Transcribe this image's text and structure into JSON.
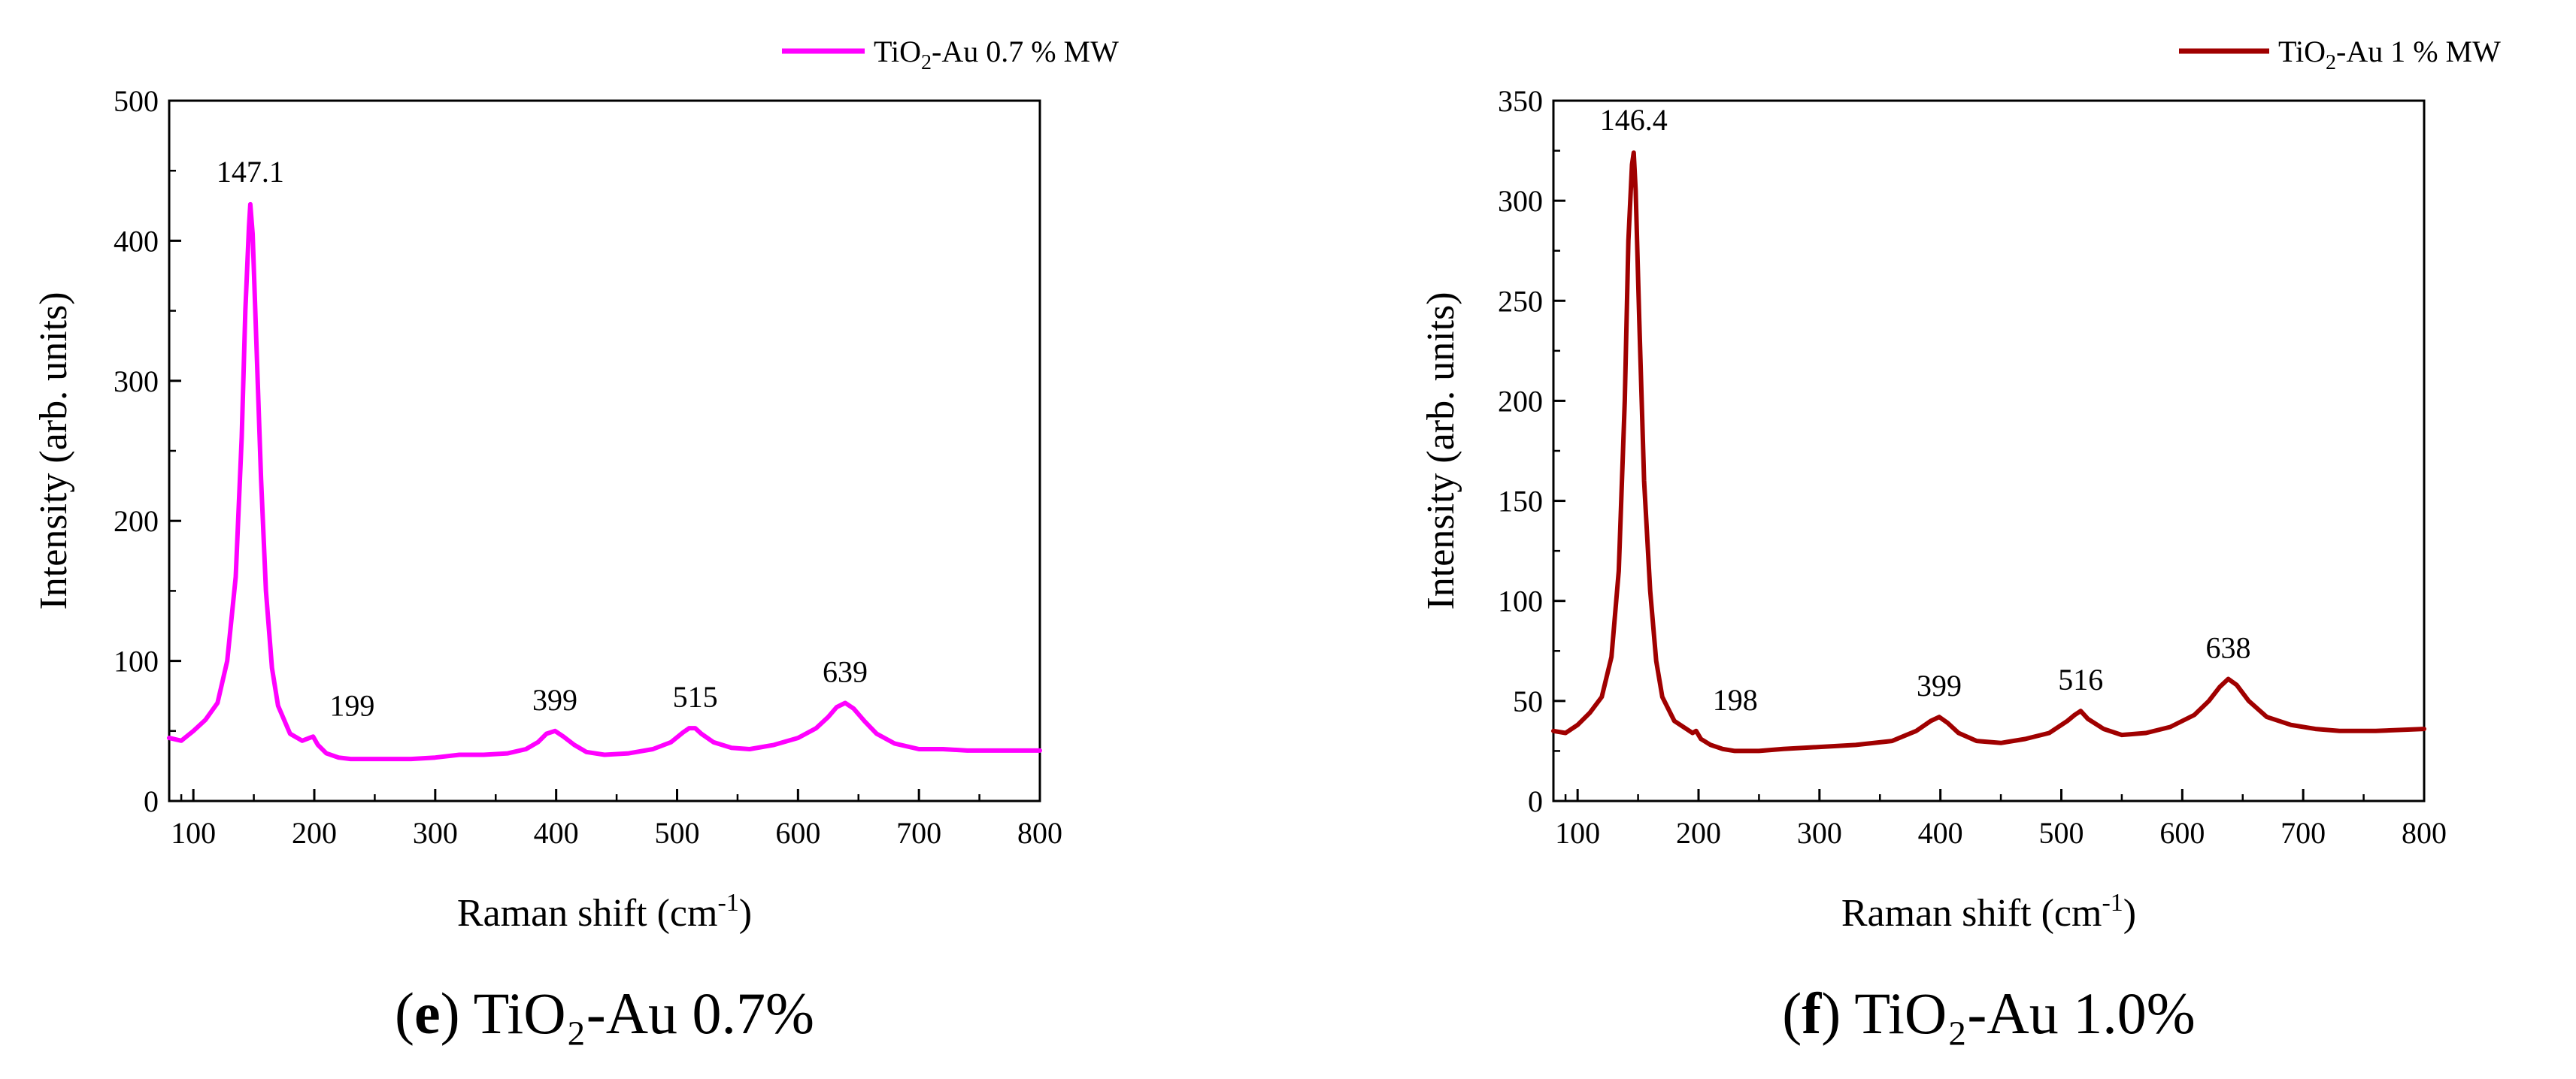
{
  "chart_data": [
    {
      "type": "line",
      "panel": "e",
      "caption_letter": "e",
      "caption_text": "TiO₂-Au 0.7%",
      "xlabel_main": "Raman shift (cm",
      "xlabel_sup": "-1",
      "xlabel_end": ")",
      "ylabel": "Intensity (arb. units)",
      "xlim": [
        80,
        800
      ],
      "ylim": [
        0,
        500
      ],
      "xticks": [
        100,
        200,
        300,
        400,
        500,
        600,
        700,
        800
      ],
      "yticks": [
        0,
        100,
        200,
        300,
        400,
        500
      ],
      "legend": {
        "prefix": "TiO",
        "sub": "2",
        "suffix": "-Au 0.7 % MW",
        "color": "#ff00ff",
        "position": "top-right"
      },
      "color": "#ff00ff",
      "series": [
        {
          "name": "TiO2-Au 0.7 % MW",
          "x": [
            80,
            90,
            100,
            110,
            120,
            128,
            135,
            140,
            143,
            146,
            147.1,
            149,
            152,
            156,
            160,
            165,
            170,
            180,
            190,
            196,
            199,
            203,
            210,
            220,
            230,
            240,
            260,
            280,
            300,
            320,
            340,
            360,
            375,
            385,
            392,
            399,
            406,
            415,
            425,
            440,
            460,
            480,
            495,
            505,
            510,
            515,
            520,
            530,
            545,
            560,
            580,
            600,
            615,
            625,
            632,
            639,
            646,
            655,
            665,
            680,
            700,
            720,
            740,
            760,
            780,
            800
          ],
          "y": [
            45,
            43,
            50,
            58,
            70,
            100,
            160,
            260,
            350,
            410,
            426,
            405,
            330,
            230,
            150,
            95,
            68,
            48,
            43,
            45,
            46,
            40,
            34,
            31,
            30,
            30,
            30,
            30,
            31,
            33,
            33,
            34,
            37,
            42,
            48,
            50,
            46,
            40,
            35,
            33,
            34,
            37,
            42,
            49,
            52,
            52,
            48,
            42,
            38,
            37,
            40,
            45,
            52,
            60,
            67,
            70,
            66,
            57,
            48,
            41,
            37,
            37,
            36,
            36,
            36,
            36
          ]
        }
      ],
      "annotations": [
        {
          "text": "147.1",
          "x": 147.1,
          "y": 426
        },
        {
          "text": "199",
          "x": 199,
          "y": 46
        },
        {
          "text": "399",
          "x": 399,
          "y": 50
        },
        {
          "text": "515",
          "x": 515,
          "y": 52
        },
        {
          "text": "639",
          "x": 639,
          "y": 70
        }
      ]
    },
    {
      "type": "line",
      "panel": "f",
      "caption_letter": "f",
      "caption_text": "TiO₂-Au 1.0%",
      "xlabel_main": "Raman shift (cm",
      "xlabel_sup": "-1",
      "xlabel_end": ")",
      "ylabel": "Intensity (arb. units)",
      "xlim": [
        80,
        800
      ],
      "ylim": [
        0,
        350
      ],
      "xticks": [
        100,
        200,
        300,
        400,
        500,
        600,
        700,
        800
      ],
      "yticks": [
        0,
        50,
        100,
        150,
        200,
        250,
        300,
        350
      ],
      "legend": {
        "prefix": "TiO",
        "sub": "2",
        "suffix": "-Au 1 % MW",
        "color": "#a00000",
        "position": "top-right"
      },
      "color": "#a00000",
      "series": [
        {
          "name": "TiO2-Au 1 % MW",
          "x": [
            80,
            90,
            100,
            110,
            120,
            128,
            134,
            139,
            142,
            145,
            146.4,
            148,
            151,
            155,
            160,
            165,
            170,
            180,
            190,
            195,
            198,
            202,
            210,
            220,
            230,
            250,
            270,
            300,
            330,
            360,
            380,
            392,
            399,
            406,
            415,
            430,
            450,
            470,
            490,
            505,
            511,
            516,
            522,
            535,
            550,
            570,
            590,
            610,
            622,
            631,
            638,
            645,
            655,
            670,
            690,
            710,
            730,
            760,
            800
          ],
          "y": [
            35,
            34,
            38,
            44,
            52,
            72,
            115,
            200,
            280,
            318,
            324,
            305,
            240,
            160,
            105,
            70,
            52,
            40,
            36,
            34,
            35,
            31,
            28,
            26,
            25,
            25,
            26,
            27,
            28,
            30,
            35,
            40,
            42,
            39,
            34,
            30,
            29,
            31,
            34,
            40,
            43,
            45,
            41,
            36,
            33,
            34,
            37,
            43,
            50,
            57,
            61,
            58,
            50,
            42,
            38,
            36,
            35,
            35,
            36
          ]
        }
      ],
      "annotations": [
        {
          "text": "146.4",
          "x": 146.4,
          "y": 324
        },
        {
          "text": "198",
          "x": 198,
          "y": 35
        },
        {
          "text": "399",
          "x": 399,
          "y": 42
        },
        {
          "text": "516",
          "x": 516,
          "y": 45
        },
        {
          "text": "638",
          "x": 638,
          "y": 61
        }
      ]
    }
  ]
}
